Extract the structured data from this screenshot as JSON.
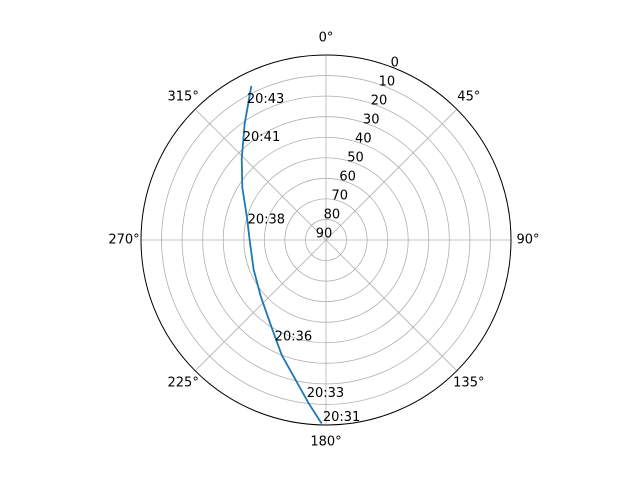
{
  "chart_data": {
    "type": "line",
    "projection": "polar",
    "theta_direction": "clockwise",
    "theta_zero": "N",
    "r_axis": "inverted (elevation 90 at center, 0 at edge)",
    "grid": true,
    "theta_ticks": [
      "0°",
      "45°",
      "90°",
      "135°",
      "180°",
      "225°",
      "270°",
      "315°"
    ],
    "r_ticks": [
      "0",
      "10",
      "20",
      "30",
      "40",
      "50",
      "60",
      "70",
      "80",
      "90"
    ],
    "colors": {
      "series": "#1f77b4",
      "grid": "#b0b0b0",
      "frame": "#000000"
    },
    "series": [
      {
        "points": [
          {
            "az": 181.5,
            "el": 1
          },
          {
            "az": 186,
            "el": 10
          },
          {
            "az": 192,
            "el": 20
          },
          {
            "az": 201,
            "el": 30
          },
          {
            "az": 212,
            "el": 40
          },
          {
            "az": 229,
            "el": 48
          },
          {
            "az": 248,
            "el": 52
          },
          {
            "az": 268,
            "el": 53
          },
          {
            "az": 286,
            "el": 50
          },
          {
            "az": 302,
            "el": 42
          },
          {
            "az": 314,
            "el": 33
          },
          {
            "az": 325,
            "el": 21
          },
          {
            "az": 334,
            "el": 7
          }
        ]
      }
    ],
    "annotations": [
      {
        "text": "20:31",
        "az": 181,
        "el": 2
      },
      {
        "text": "20:33",
        "az": 187,
        "el": 13
      },
      {
        "text": "20:36",
        "az": 207,
        "el": 35
      },
      {
        "text": "20:38",
        "az": 282,
        "el": 51
      },
      {
        "text": "20:41",
        "az": 320,
        "el": 27
      },
      {
        "text": "20:43",
        "az": 330,
        "el": 13
      }
    ]
  }
}
